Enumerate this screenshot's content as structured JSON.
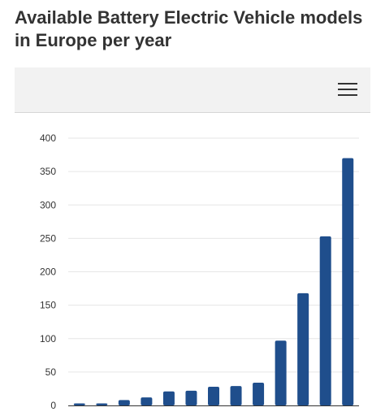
{
  "header": {
    "title": "Available Battery Electric Vehicle models in Europe per year"
  },
  "toolbar": {
    "menu_icon": "hamburger-menu-icon"
  },
  "chart_data": {
    "type": "bar",
    "title": "Available Battery Electric Vehicle models in Europe per year",
    "xlabel": "",
    "ylabel": "",
    "ylim": [
      0,
      400
    ],
    "yticks": [
      "0",
      "50",
      "100",
      "150",
      "200",
      "250",
      "300",
      "350",
      "400"
    ],
    "categories": [
      "",
      "",
      "",
      "",
      "",
      "",
      "",
      "",
      "",
      "",
      "",
      "",
      ""
    ],
    "values": [
      3,
      3,
      8,
      12,
      21,
      22,
      28,
      29,
      34,
      97,
      168,
      253,
      370
    ],
    "grid": true,
    "legend": "none",
    "bar_color": "#1f4e8c",
    "grid_color": "#e6e6e6"
  }
}
